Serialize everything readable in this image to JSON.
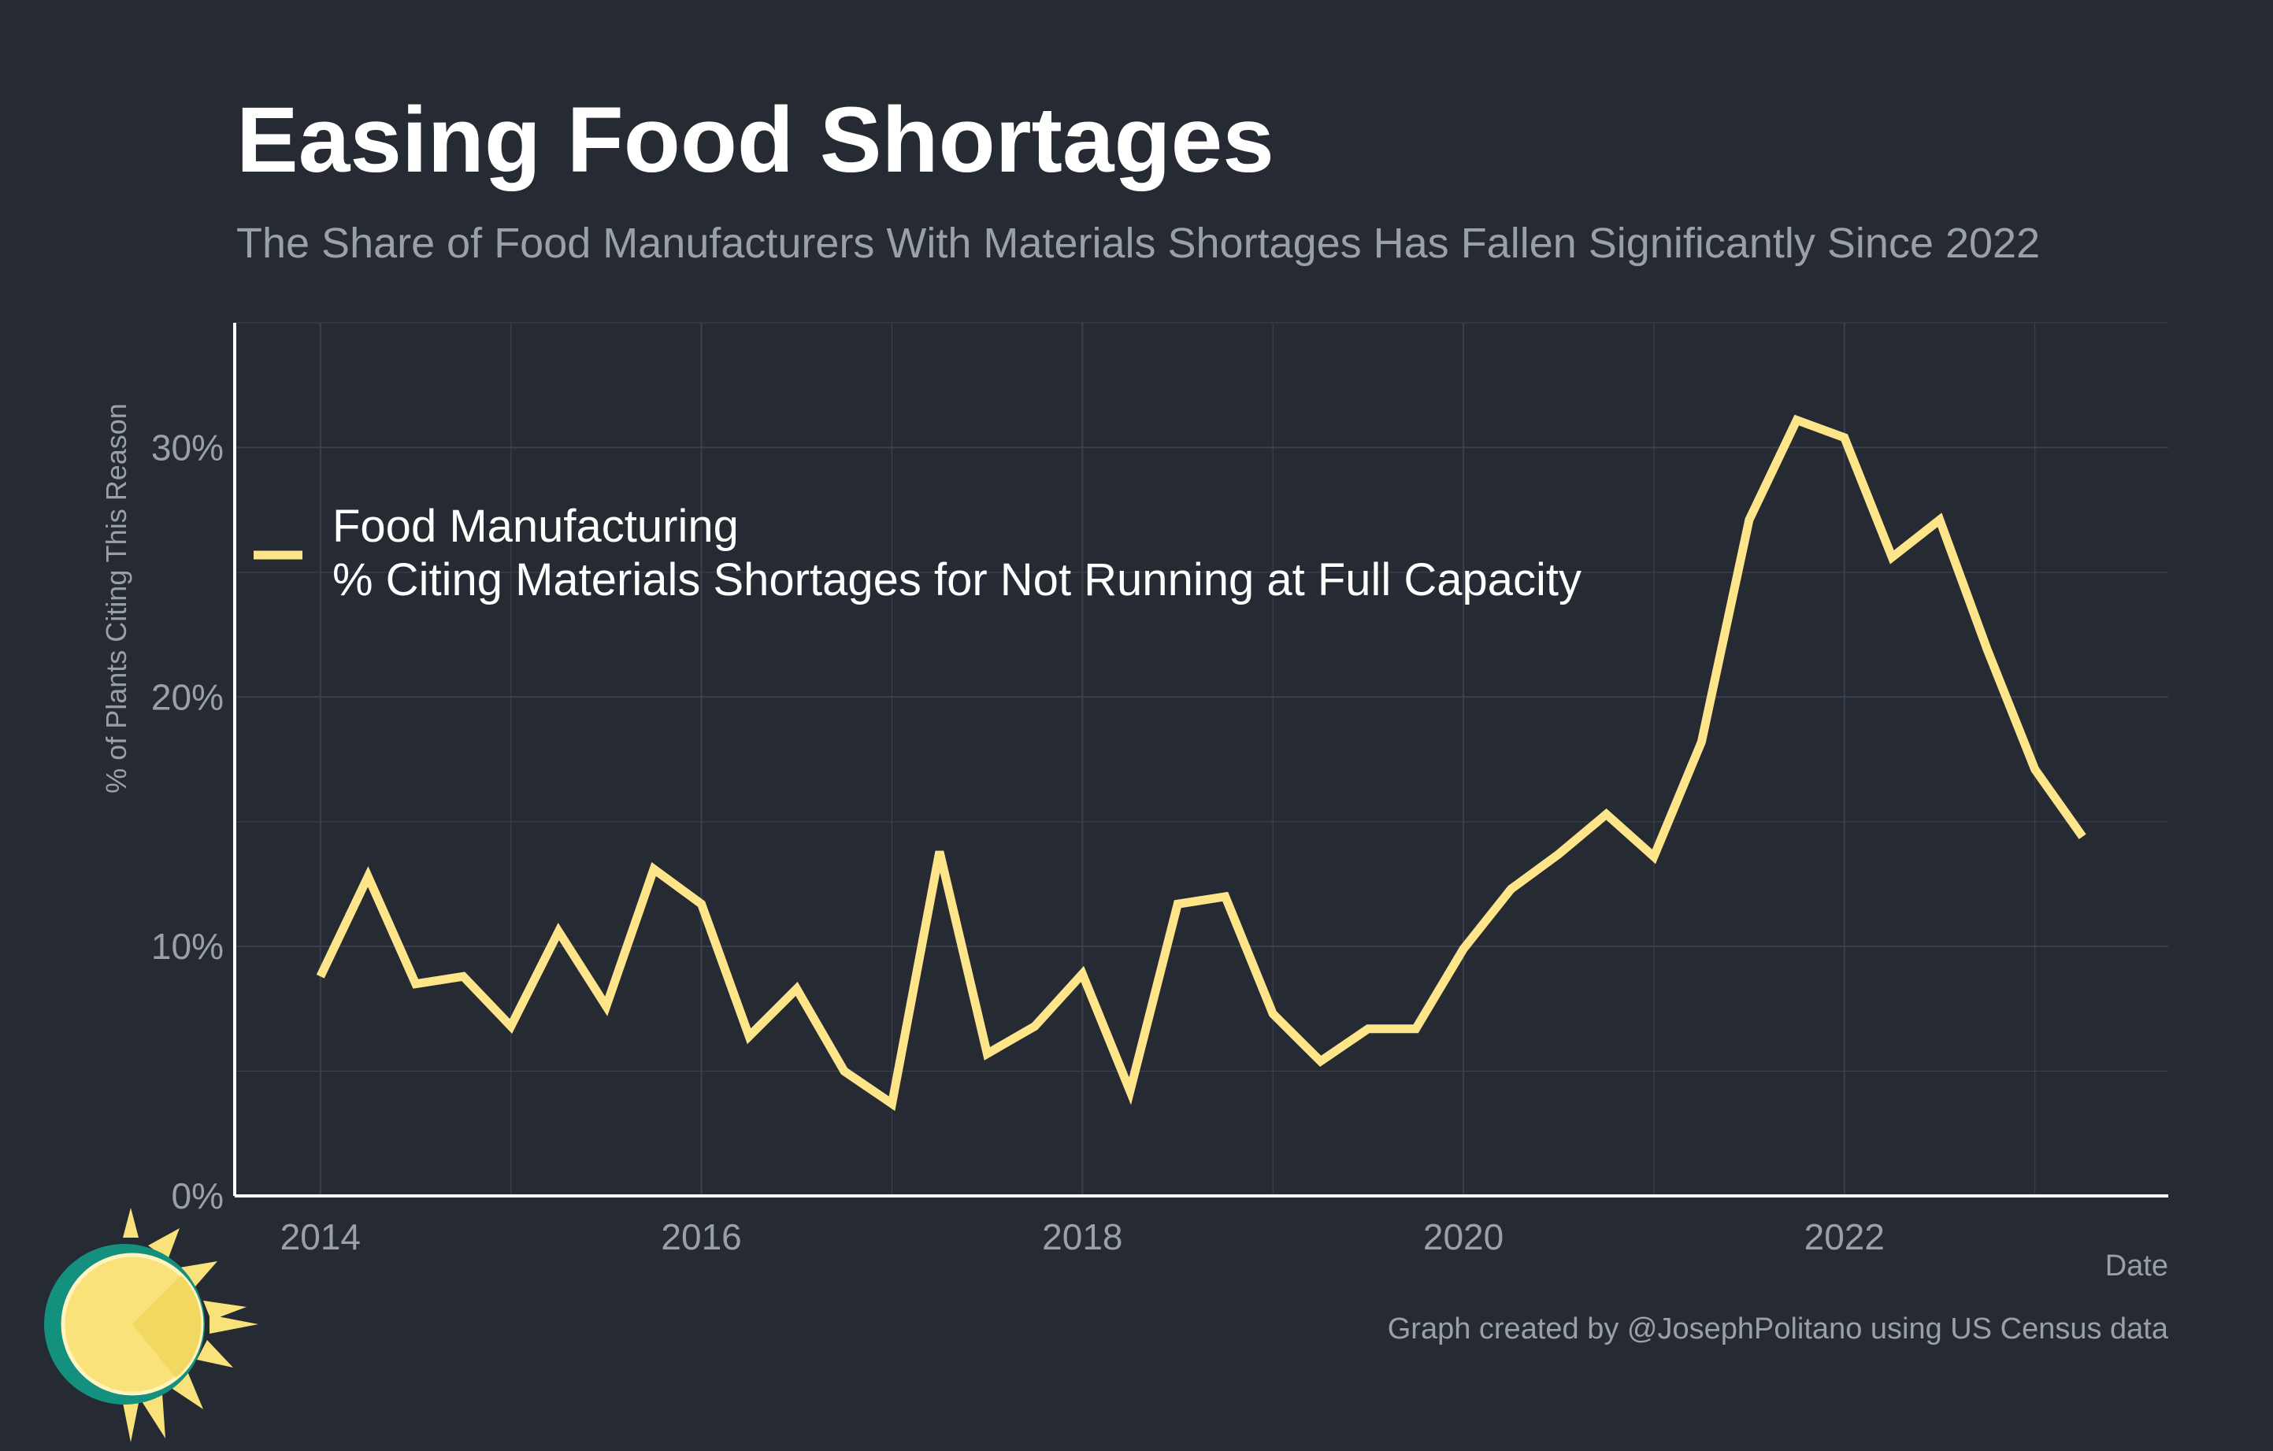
{
  "title": "Easing Food Shortages",
  "subtitle": "The Share of Food Manufacturers With Materials Shortages Has Fallen Significantly Since 2022",
  "caption": "Graph created by @JosephPolitano using US Census data",
  "colors": {
    "background": "#252a33",
    "grid": "#3b414c",
    "axis": "#ffffff",
    "title": "#ffffff",
    "muted": "#9aa0a8",
    "line": "#ffe58a",
    "logo_sun": "#f9e27a",
    "logo_ring": "#14907f"
  },
  "logo": {
    "name": "sun-logo-icon"
  },
  "chart_data": {
    "type": "line",
    "title": "Easing Food Shortages",
    "subtitle": "The Share of Food Manufacturers With Materials Shortages Has Fallen Significantly Since 2022",
    "xlabel": "Date",
    "ylabel": "% of Plants Citing This Reason",
    "xlim": [
      2013.55,
      2023.7
    ],
    "ylim": [
      0,
      35
    ],
    "x_ticks": [
      2014,
      2016,
      2018,
      2020,
      2022
    ],
    "x_tick_labels": [
      "2014",
      "2016",
      "2018",
      "2020",
      "2022"
    ],
    "y_ticks": [
      0,
      10,
      20,
      30
    ],
    "y_tick_labels": [
      "0%",
      "10%",
      "20%",
      "30%"
    ],
    "grid": true,
    "legend_position": "top-left",
    "series": [
      {
        "name": "Food Manufacturing\n% Citing Materials Shortages for Not Running at Full Capacity",
        "legend_lines": [
          "Food Manufacturing",
          "% Citing Materials Shortages for Not Running at Full Capacity"
        ],
        "x": [
          "2014-Q1",
          "2014-Q2",
          "2014-Q3",
          "2014-Q4",
          "2015-Q1",
          "2015-Q2",
          "2015-Q3",
          "2015-Q4",
          "2016-Q1",
          "2016-Q2",
          "2016-Q3",
          "2016-Q4",
          "2017-Q1",
          "2017-Q2",
          "2017-Q3",
          "2017-Q4",
          "2018-Q1",
          "2018-Q2",
          "2018-Q3",
          "2018-Q4",
          "2019-Q1",
          "2019-Q2",
          "2019-Q3",
          "2019-Q4",
          "2020-Q1",
          "2020-Q2",
          "2020-Q3",
          "2020-Q4",
          "2021-Q1",
          "2021-Q2",
          "2021-Q3",
          "2021-Q4",
          "2022-Q1",
          "2022-Q2",
          "2022-Q3",
          "2022-Q4",
          "2023-Q1",
          "2023-Q2"
        ],
        "values": [
          8.8,
          12.8,
          8.5,
          8.8,
          6.8,
          10.6,
          7.6,
          13.1,
          11.7,
          6.4,
          8.3,
          5.0,
          3.7,
          13.8,
          5.7,
          6.8,
          8.9,
          4.2,
          11.7,
          12.0,
          7.3,
          5.4,
          6.7,
          6.7,
          9.9,
          12.3,
          13.7,
          15.3,
          13.6,
          18.2,
          27.1,
          31.1,
          30.4,
          25.6,
          27.1,
          21.9,
          17.1,
          14.4
        ]
      }
    ]
  }
}
